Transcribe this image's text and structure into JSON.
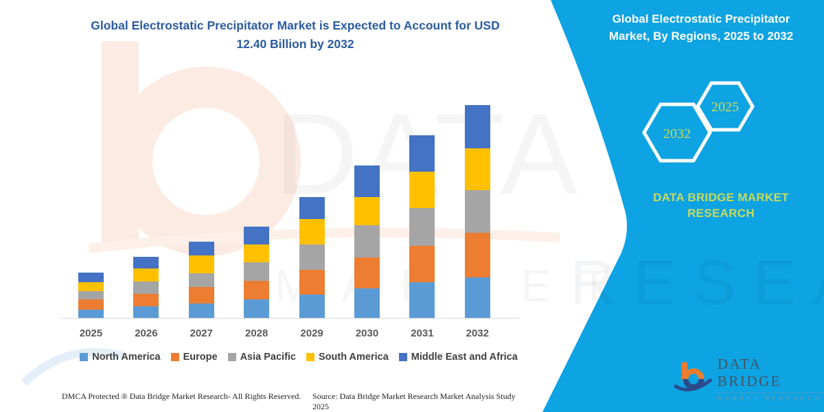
{
  "page": {
    "title_line1": "Global Electrostatic Precipitator Market is Expected to Account for USD",
    "title_line2": "12.40 Billion by 2032"
  },
  "side_panel": {
    "heading_line1": "Global Electrostatic Precipitator",
    "heading_line2": "Market, By Regions, 2025 to 2032",
    "hexagon_back_label": "2032",
    "hexagon_front_label": "2025",
    "brand_text": "DATA BRIDGE MARKET RESEARCH",
    "panel_color": "#0EA3E2",
    "label_color": "#C9DB5A",
    "watermark_text": "RESEARCH"
  },
  "watermark": {
    "line1": "DATA BRIDGE",
    "line2": "MARKET RESEARCH"
  },
  "logo": {
    "name": "DATA BRIDGE",
    "subtitle": "MARKET RESEARCH"
  },
  "footer": {
    "left": "DMCA Protected ® Data Bridge Market Research-  All Rights Reserved.",
    "source": "Source: Data Bridge Market Research  Market Analysis Study 2025"
  },
  "chart_data": {
    "type": "bar",
    "stacked": true,
    "unit": "USD Billion",
    "title": "Global Electrostatic Precipitator Market is Expected to Account for USD 12.40 Billion by 2032",
    "categories": [
      "2025",
      "2026",
      "2027",
      "2028",
      "2029",
      "2030",
      "2031",
      "2032"
    ],
    "series": [
      {
        "name": "North America",
        "color": "#5B9BD5",
        "values": [
          0.49,
          0.69,
          0.85,
          1.07,
          1.36,
          1.71,
          2.07,
          2.37
        ]
      },
      {
        "name": "Europe",
        "color": "#ED7D31",
        "values": [
          0.6,
          0.73,
          0.97,
          1.09,
          1.44,
          1.83,
          2.13,
          2.6
        ]
      },
      {
        "name": "Asia Pacific",
        "color": "#A5A5A5",
        "values": [
          0.47,
          0.71,
          0.8,
          1.07,
          1.49,
          1.87,
          2.19,
          2.49
        ]
      },
      {
        "name": "South America",
        "color": "#FFC000",
        "values": [
          0.53,
          0.76,
          1.03,
          1.04,
          1.47,
          1.64,
          2.13,
          2.44
        ]
      },
      {
        "name": "Middle East and Africa",
        "color": "#4472C4",
        "values": [
          0.57,
          0.67,
          0.8,
          1.07,
          1.28,
          1.83,
          2.12,
          2.5
        ]
      }
    ],
    "totals": [
      2.66,
      3.56,
      4.45,
      5.34,
      7.04,
      8.88,
      10.64,
      12.4
    ],
    "ylim": [
      0,
      12.5
    ],
    "gridlines": false,
    "y_axis_visible": false,
    "legend_position": "bottom"
  }
}
